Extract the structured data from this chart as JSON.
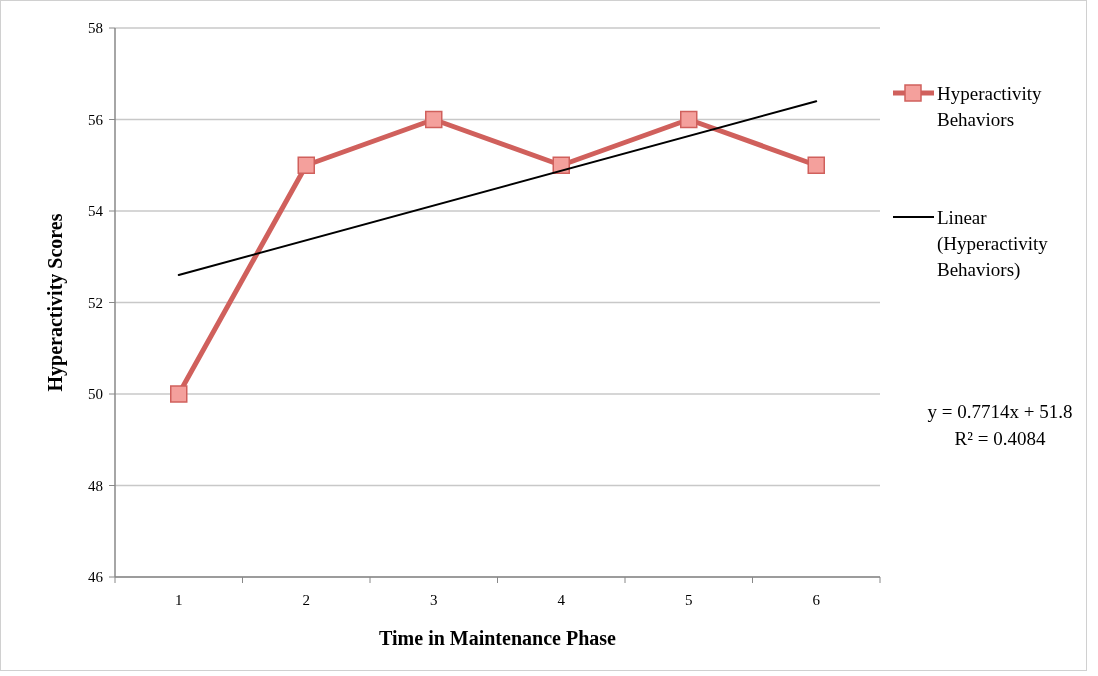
{
  "chart_data": {
    "type": "line",
    "xlabel": "Time in Maintenance Phase",
    "ylabel": "Hyperactivity Scores",
    "categories": [
      "1",
      "2",
      "3",
      "4",
      "5",
      "6"
    ],
    "ylim": [
      46,
      58
    ],
    "yticks": [
      46,
      48,
      50,
      52,
      54,
      56,
      58
    ],
    "grid": "y",
    "legend": "right",
    "marker": "square",
    "line_style": "solid",
    "series": [
      {
        "name": "Hyperactivity Behaviors",
        "color": "#d0605c",
        "values": [
          50,
          55,
          56,
          55,
          56,
          55
        ]
      },
      {
        "name": "Linear (Hyperactivity Behaviors)",
        "type": "line",
        "marker": "none",
        "color": "#000000",
        "x": [
          "1",
          "6"
        ],
        "values": [
          52.6,
          56.4
        ]
      }
    ],
    "annotations": [
      "y = 0.7714x + 51.8",
      "R² = 0.4084"
    ]
  }
}
